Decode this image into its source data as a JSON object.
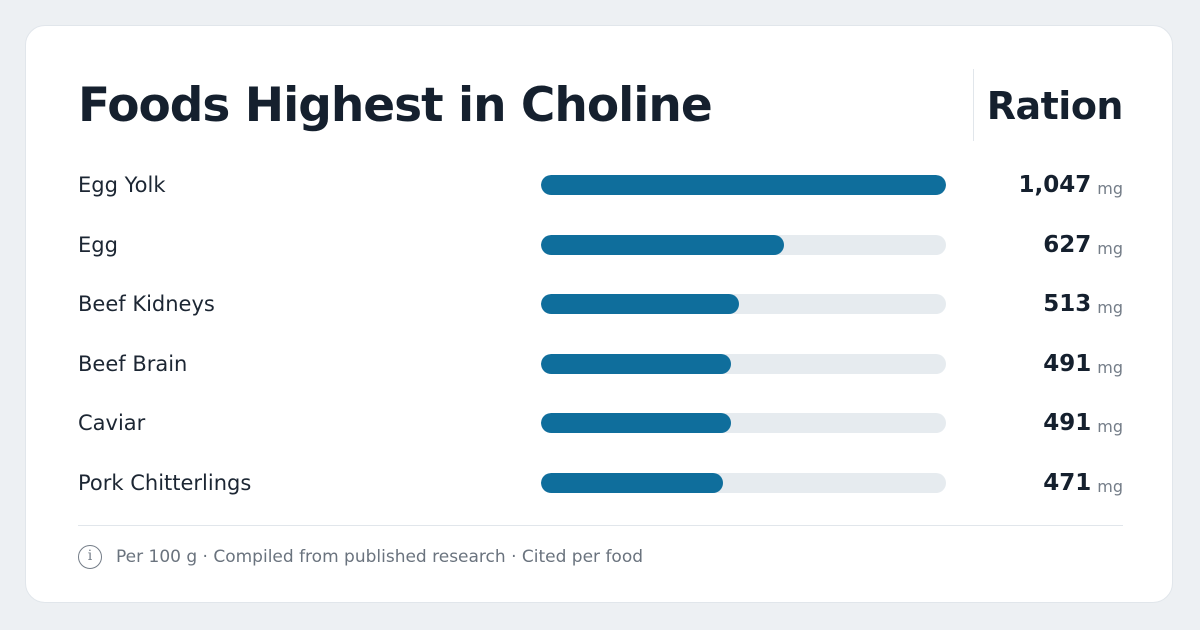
{
  "colors": {
    "page_background": "#edf0f3",
    "card_background": "#ffffff",
    "bar_fill": "#0f6e9c",
    "bar_track": "#e6ebef",
    "text_primary": "#15202e",
    "text_secondary": "#747d88"
  },
  "footer": {
    "icon": "info-icon",
    "icon_glyph": "i",
    "note": "Per 100 g · Compiled from published research · Cited per food"
  },
  "chart_data": {
    "type": "bar",
    "orientation": "horizontal",
    "title": "Foods Highest in Choline",
    "value_column_header": "Ration",
    "unit": "mg",
    "xlim": [
      0,
      1047
    ],
    "categories": [
      "Egg Yolk",
      "Egg",
      "Beef Kidneys",
      "Beef Brain",
      "Caviar",
      "Pork Chitterlings"
    ],
    "values": [
      1047,
      627,
      513,
      491,
      491,
      471
    ],
    "value_labels": [
      "1,047",
      "627",
      "513",
      "491",
      "491",
      "471"
    ]
  }
}
